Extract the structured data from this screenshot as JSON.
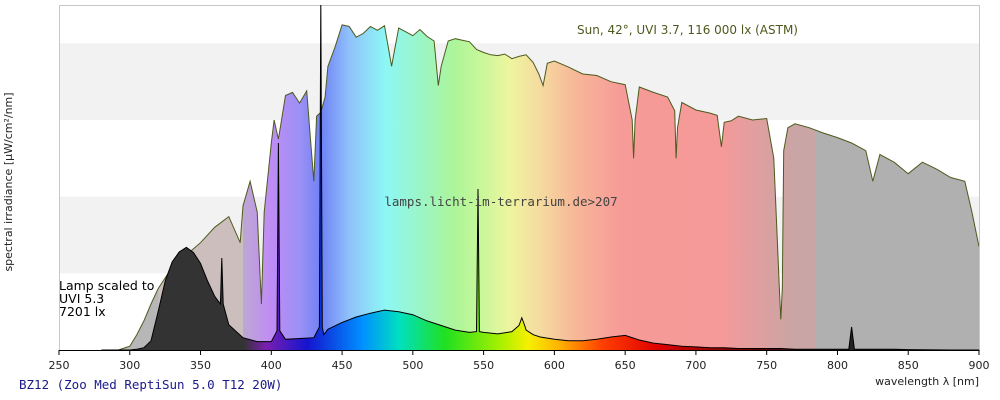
{
  "chart_data": {
    "type": "area",
    "footer": "BZ12 (Zoo Med ReptiSun 5.0 T12 20W)",
    "watermark": "lamps.licht-im-terrarium.de>207",
    "xlabel": "wavelength λ [nm]",
    "ylabel": "spectral irradiance [µW/cm²/nm]",
    "xlim": [
      250,
      900
    ],
    "x_ticks": [
      250,
      300,
      350,
      400,
      450,
      500,
      550,
      600,
      650,
      700,
      750,
      800,
      850,
      900
    ],
    "grid": "horizontal bands",
    "sun": {
      "label": "Sun, 42°, UVI 3.7, 116 000 lx (ASTM)",
      "x": [
        292,
        300,
        305,
        310,
        315,
        320,
        330,
        340,
        350,
        360,
        370,
        378,
        380,
        385,
        390,
        393,
        395,
        400,
        402,
        405,
        410,
        415,
        420,
        425,
        430,
        432,
        435,
        438,
        440,
        445,
        450,
        455,
        460,
        465,
        470,
        475,
        480,
        485,
        487,
        490,
        495,
        500,
        505,
        510,
        515,
        518,
        520,
        525,
        530,
        535,
        540,
        545,
        550,
        555,
        560,
        565,
        570,
        575,
        580,
        585,
        589,
        592,
        595,
        600,
        610,
        620,
        630,
        640,
        650,
        655,
        656,
        657,
        660,
        670,
        680,
        685,
        686,
        687,
        690,
        700,
        710,
        715,
        718,
        720,
        725,
        730,
        740,
        750,
        755,
        759,
        760,
        761,
        762,
        765,
        770,
        780,
        790,
        800,
        810,
        815,
        820,
        825,
        830,
        840,
        850,
        860,
        870,
        880,
        890,
        895,
        900
      ],
      "y": [
        0.0,
        0.5,
        2.0,
        3.8,
        6.0,
        8.0,
        10.8,
        12.4,
        14.0,
        16.0,
        17.4,
        14.0,
        18.8,
        22.0,
        18.0,
        6.0,
        18.0,
        27.0,
        30.0,
        27.5,
        33.2,
        33.6,
        32.2,
        33.8,
        22.0,
        30.5,
        31.0,
        33.0,
        37.0,
        39.5,
        42.4,
        42.2,
        40.8,
        41.3,
        42.2,
        41.7,
        42.3,
        37.0,
        39.0,
        42.0,
        41.5,
        41.0,
        41.8,
        40.9,
        40.3,
        34.5,
        37.0,
        40.3,
        40.6,
        40.4,
        40.2,
        39.2,
        38.8,
        38.5,
        38.4,
        38.6,
        38.0,
        38.3,
        38.5,
        37.5,
        36.0,
        34.5,
        37.4,
        37.7,
        36.9,
        36.0,
        35.8,
        35.0,
        34.6,
        30.0,
        25.0,
        30.0,
        34.3,
        33.6,
        33.0,
        31.2,
        25.0,
        29.0,
        32.3,
        31.3,
        30.9,
        30.6,
        26.5,
        29.7,
        29.9,
        30.5,
        30.0,
        30.2,
        25.0,
        8.0,
        4.0,
        8.0,
        26.0,
        29.0,
        29.5,
        29.0,
        28.3,
        27.7,
        27.0,
        26.5,
        26.0,
        22.0,
        25.5,
        24.5,
        23.0,
        24.5,
        23.6,
        22.5,
        22.0,
        18.0,
        13.5
      ]
    },
    "lamp": {
      "label_lines": [
        "Lamp scaled to",
        "UVI 5.3",
        "7201 lx"
      ],
      "x": [
        280,
        300,
        305,
        310,
        315,
        320,
        325,
        330,
        335,
        340,
        345,
        350,
        355,
        360,
        364,
        365,
        366,
        370,
        380,
        390,
        400,
        404,
        405,
        406,
        410,
        420,
        430,
        434,
        435,
        436,
        437,
        440,
        450,
        460,
        470,
        480,
        490,
        500,
        510,
        520,
        530,
        540,
        545,
        546,
        547,
        550,
        560,
        570,
        575,
        577,
        579,
        580,
        585,
        590,
        600,
        610,
        620,
        630,
        640,
        650,
        660,
        670,
        680,
        690,
        700,
        710,
        720,
        730,
        740,
        750,
        760,
        770,
        780,
        790,
        800,
        808,
        810,
        812,
        820,
        830,
        840,
        850,
        880,
        900
      ],
      "y": [
        0.0,
        0.0,
        0.1,
        0.3,
        1.2,
        5.0,
        9.0,
        11.5,
        12.8,
        13.4,
        12.7,
        11.3,
        9.0,
        7.0,
        6.0,
        12.0,
        6.0,
        3.3,
        1.6,
        1.1,
        1.1,
        2.5,
        27.0,
        2.5,
        1.4,
        1.5,
        1.6,
        3.0,
        46.0,
        3.0,
        2.0,
        2.7,
        3.6,
        4.3,
        4.8,
        5.2,
        5.0,
        4.6,
        3.8,
        3.2,
        2.6,
        2.3,
        2.4,
        21.0,
        2.4,
        2.3,
        2.1,
        2.4,
        3.2,
        4.2,
        3.2,
        2.6,
        2.0,
        1.7,
        1.4,
        1.2,
        1.2,
        1.4,
        1.7,
        1.9,
        1.3,
        0.9,
        0.7,
        0.5,
        0.4,
        0.3,
        0.3,
        0.2,
        0.2,
        0.2,
        0.2,
        0.1,
        0.1,
        0.1,
        0.1,
        0.1,
        3.0,
        0.1,
        0.1,
        0.1,
        0.1,
        0.05,
        0.0,
        0.0
      ]
    },
    "colors": {
      "sun_outline": "#4d5a1e",
      "lamp_fill": "#000000",
      "band_grey": "#f2f2f2",
      "footer": "#1a1a8c"
    }
  }
}
